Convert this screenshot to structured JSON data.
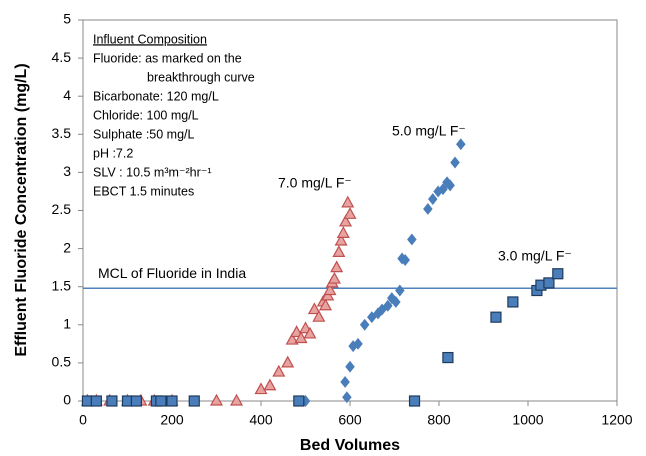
{
  "chart_data": {
    "type": "scatter",
    "xlabel": "Bed Volumes",
    "ylabel": "Effluent Fluoride Concentration (mg/L)",
    "xlim": [
      0,
      1200
    ],
    "xticks": [
      0,
      200,
      400,
      600,
      800,
      1000,
      1200
    ],
    "ylim": [
      0,
      5
    ],
    "yticks": [
      0,
      0.5,
      1,
      1.5,
      2,
      2.5,
      3,
      3.5,
      4,
      4.5,
      5
    ],
    "grid": false,
    "reference_line": {
      "value": 1.48,
      "label": "MCL of Fluoride in India",
      "color": "#4f81bd"
    },
    "annotation_title": "Influent Composition",
    "annotations": [
      "Fluoride: as marked on the",
      "breakthrough curve",
      "Bicarbonate: 120 mg/L",
      "Chloride: 100 mg/L",
      "Sulphate :50 mg/L",
      "pH :7.2",
      "SLV :  10.5 m³m⁻²hr⁻¹",
      "EBCT  1.5 minutes"
    ],
    "series": [
      {
        "name": "7.0 mg/L F⁻",
        "marker": "triangle",
        "color": "#e6a3a1",
        "edgecolor": "#c0504d",
        "x": [
          10,
          30,
          60,
          100,
          130,
          160,
          200,
          300,
          345,
          400,
          420,
          440,
          460,
          470,
          480,
          490,
          500,
          510,
          520,
          530,
          540,
          545,
          550,
          555,
          560,
          565,
          570,
          575,
          580,
          585,
          590,
          595,
          600
        ],
        "values": [
          0,
          0,
          0,
          0,
          0,
          0,
          0,
          0,
          0,
          0.15,
          0.2,
          0.38,
          0.5,
          0.8,
          0.9,
          0.82,
          0.95,
          0.88,
          1.2,
          1.1,
          1.3,
          1.25,
          1.38,
          1.45,
          1.55,
          1.6,
          1.75,
          1.95,
          2.1,
          2.2,
          2.35,
          2.6,
          2.45
        ]
      },
      {
        "name": "5.0 mg/L F⁻",
        "marker": "diamond",
        "color": "#4a7ebb",
        "edgecolor": "#4a7ebb",
        "x": [
          500,
          593,
          589,
          600,
          607,
          618,
          633,
          649,
          663,
          672,
          685,
          694,
          703,
          712,
          717,
          724,
          739,
          775,
          786,
          798,
          809,
          818,
          825,
          836,
          849
        ],
        "values": [
          0,
          0.05,
          0.25,
          0.45,
          0.72,
          0.75,
          1.0,
          1.1,
          1.15,
          1.2,
          1.25,
          1.35,
          1.3,
          1.45,
          1.87,
          1.85,
          2.12,
          2.52,
          2.65,
          2.75,
          2.78,
          2.87,
          2.83,
          3.13,
          3.37
        ]
      },
      {
        "name": "3.0 mg/L F⁻",
        "marker": "square",
        "color": "#4a7ebb",
        "edgecolor": "#1f3b5c",
        "x": [
          10,
          30,
          65,
          100,
          120,
          165,
          175,
          200,
          250,
          485,
          745,
          820,
          928,
          966,
          1020,
          1029,
          1047,
          1067
        ],
        "values": [
          0,
          0,
          0,
          0,
          0,
          0,
          0,
          0,
          0,
          0,
          0,
          0.57,
          1.1,
          1.3,
          1.45,
          1.52,
          1.55,
          1.67
        ]
      }
    ]
  }
}
